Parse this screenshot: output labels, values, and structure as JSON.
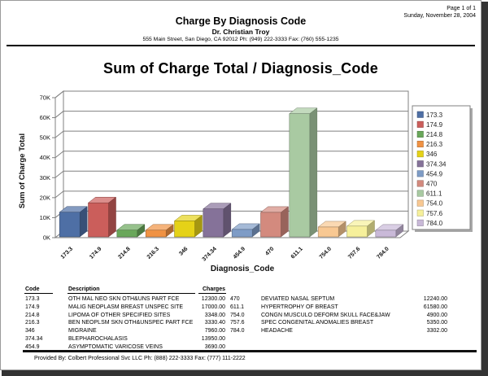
{
  "page_info": {
    "page": "Page 1 of 1",
    "date": "Sunday, November 28, 2004"
  },
  "header": {
    "title": "Charge By Diagnosis Code",
    "doctor": "Dr. Christian Troy",
    "address": "555 Main Street, San Diego, CA 92012 Ph: (949) 222-3333 Fax: (760) 555-1235"
  },
  "chart_data": {
    "type": "bar",
    "title": "Sum of Charge Total / Diagnosis_Code",
    "xlabel": "Diagnosis_Code",
    "ylabel": "Sum of Charge Total",
    "categories": [
      "173.3",
      "174.9",
      "214.8",
      "216.3",
      "346",
      "374.34",
      "454.9",
      "470",
      "611.1",
      "754.0",
      "757.6",
      "784.0"
    ],
    "values": [
      12300,
      17000,
      3348,
      3330.4,
      7960,
      13950,
      3690,
      12240,
      61580,
      4900,
      5350,
      3302
    ],
    "bar_colors": [
      "#4e6fa5",
      "#cb5e5b",
      "#69a75a",
      "#f09243",
      "#e5d217",
      "#857299",
      "#7e9cc6",
      "#d38a7e",
      "#a9caa2",
      "#f8c892",
      "#f6f09b",
      "#c9b9d8"
    ],
    "ylim": [
      0,
      70000
    ],
    "ytick_labels": [
      "0K",
      "10K",
      "20K",
      "30K",
      "40K",
      "50K",
      "60K",
      "70K"
    ],
    "axis_color": "#808080",
    "grid": true,
    "legend_position": "right",
    "view": "3d-column"
  },
  "table": {
    "headers": [
      "Code",
      "Description",
      "Charges"
    ],
    "left_rows": [
      {
        "code": "173.3",
        "desc": "OTH MAL NEO SKN OTH&UNS PART FCE",
        "charges": "12300.00"
      },
      {
        "code": "174.9",
        "desc": "MALIG NEOPLASM BREAST UNSPEC SITE",
        "charges": "17000.00"
      },
      {
        "code": "214.8",
        "desc": "LIPOMA OF OTHER SPECIFIED SITES",
        "charges": "3348.00"
      },
      {
        "code": "216.3",
        "desc": "BEN NEOPLSM SKN OTH&UNSPEC PART FCE",
        "charges": "3330.40"
      },
      {
        "code": "346",
        "desc": "MIGRAINE",
        "charges": "7960.00"
      },
      {
        "code": "374.34",
        "desc": "BLEPHAROCHALASIS",
        "charges": "13950.00"
      },
      {
        "code": "454.9",
        "desc": "ASYMPTOMATIC VARICOSE VEINS",
        "charges": "3690.00"
      }
    ],
    "right_rows": [
      {
        "code": "470",
        "desc": "DEVIATED NASAL SEPTUM",
        "charges": "12240.00"
      },
      {
        "code": "611.1",
        "desc": "HYPERTROPHY OF BREAST",
        "charges": "61580.00"
      },
      {
        "code": "754.0",
        "desc": "CONGN MUSCULO DEFORM SKULL FACE&JAW",
        "charges": "4900.00"
      },
      {
        "code": "757.6",
        "desc": "SPEC CONGENITAL ANOMALIES BREAST",
        "charges": "5350.00"
      },
      {
        "code": "784.0",
        "desc": "HEADACHE",
        "charges": "3302.00"
      }
    ]
  },
  "footer": {
    "text": "Provided By: Colbert Professional Svc LLC Ph: (888) 222-3333 Fax: (777) 111-2222"
  }
}
